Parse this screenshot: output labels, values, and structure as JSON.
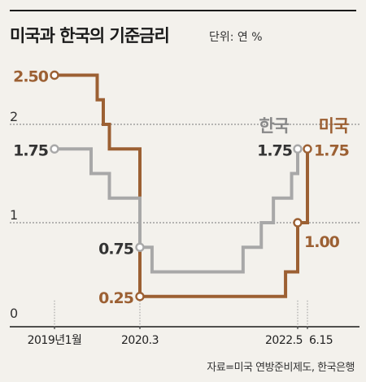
{
  "header": {
    "title": "미국과 한국의 기준금리",
    "unit": "단위: 연 %"
  },
  "footer": {
    "source": "자료=미국 연방준비제도, 한국은행"
  },
  "colors": {
    "us": "#9c6033",
    "korea": "#a8a8a8",
    "grid": "#777777",
    "axis": "#1a1a1a",
    "background": "#f3f1ec"
  },
  "chart_data": {
    "type": "line",
    "step": true,
    "title": "미국과 한국의 기준금리",
    "unit": "연 %",
    "ylim": [
      0,
      2.7
    ],
    "y_ticks": [
      {
        "value": 0,
        "label": "0",
        "gridline": false
      },
      {
        "value": 1,
        "label": "1",
        "gridline": true
      },
      {
        "value": 2,
        "label": "2",
        "gridline": true
      }
    ],
    "x_ticks": [
      {
        "date": "2019-01",
        "label": "2019년1월"
      },
      {
        "date": "2020-03",
        "label": "2020.3"
      },
      {
        "date": "2022-05",
        "label": "2022.5"
      },
      {
        "date": "2022-06-15",
        "label": "6.15"
      }
    ],
    "series": [
      {
        "name": "미국",
        "key": "us",
        "points": [
          {
            "date": "2019-01",
            "value": 2.5
          },
          {
            "date": "2019-08",
            "value": 2.25
          },
          {
            "date": "2019-09",
            "value": 2.0
          },
          {
            "date": "2019-10",
            "value": 1.75
          },
          {
            "date": "2020-03",
            "value": 1.25
          },
          {
            "date": "2020-03",
            "value": 0.25
          },
          {
            "date": "2022-03",
            "value": 0.5
          },
          {
            "date": "2022-05",
            "value": 1.0
          },
          {
            "date": "2022-06-15",
            "value": 1.75
          }
        ],
        "labels": [
          {
            "date": "2019-01",
            "value": 2.5,
            "text": "2.50"
          },
          {
            "date": "2020-03",
            "value": 0.25,
            "text": "0.25"
          },
          {
            "date": "2022-05",
            "value": 1.0,
            "text": "1.00"
          },
          {
            "date": "2022-06-15",
            "value": 1.75,
            "text": "1.75"
          }
        ]
      },
      {
        "name": "한국",
        "key": "korea",
        "points": [
          {
            "date": "2019-01",
            "value": 1.75
          },
          {
            "date": "2019-07",
            "value": 1.5
          },
          {
            "date": "2019-10",
            "value": 1.25
          },
          {
            "date": "2020-03",
            "value": 0.75
          },
          {
            "date": "2020-05",
            "value": 0.5
          },
          {
            "date": "2021-08",
            "value": 0.75
          },
          {
            "date": "2021-11",
            "value": 1.0
          },
          {
            "date": "2022-01",
            "value": 1.25
          },
          {
            "date": "2022-04",
            "value": 1.5
          },
          {
            "date": "2022-05",
            "value": 1.75
          }
        ],
        "labels": [
          {
            "date": "2019-01",
            "value": 1.75,
            "text": "1.75"
          },
          {
            "date": "2020-03",
            "value": 0.75,
            "text": "0.75"
          },
          {
            "date": "2022-05",
            "value": 1.75,
            "text": "1.75"
          }
        ]
      }
    ]
  }
}
